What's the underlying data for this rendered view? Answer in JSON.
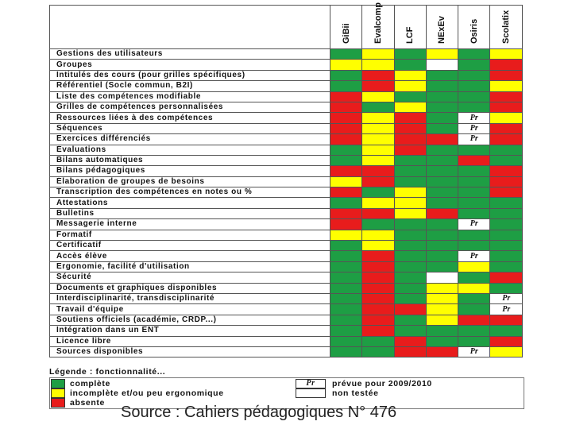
{
  "columns": [
    "GiBii",
    "Evalcomp",
    "LCF",
    "NExEv",
    "Osiris",
    "Scolatix"
  ],
  "rows": [
    {
      "label": "Gestions des utilisateurs",
      "cells": [
        "g",
        "y",
        "g",
        "y",
        "g",
        "y"
      ]
    },
    {
      "label": "Groupes",
      "cells": [
        "y",
        "y",
        "g",
        "w",
        "g",
        "r"
      ]
    },
    {
      "label": "Intitulés des cours (pour grilles spécifiques)",
      "cells": [
        "g",
        "r",
        "y",
        "g",
        "g",
        "r"
      ]
    },
    {
      "label": "Référentiel (Socle commun, B2I)",
      "cells": [
        "g",
        "r",
        "y",
        "g",
        "g",
        "y"
      ]
    },
    {
      "label": "Liste des compétences modifiable",
      "cells": [
        "r",
        "y",
        "g",
        "g",
        "g",
        "r"
      ]
    },
    {
      "label": "Grilles de compétences personnalisées",
      "cells": [
        "r",
        "g",
        "y",
        "g",
        "g",
        "r"
      ]
    },
    {
      "label": "Ressources liées à des compétences",
      "cells": [
        "r",
        "y",
        "r",
        "g",
        "Pr",
        "y"
      ]
    },
    {
      "label": "Séquences",
      "cells": [
        "r",
        "y",
        "r",
        "g",
        "Pr",
        "r"
      ]
    },
    {
      "label": "Exercices différenciés",
      "cells": [
        "r",
        "y",
        "r",
        "r",
        "Pr",
        "r"
      ]
    },
    {
      "label": "Évaluations",
      "cells": [
        "g",
        "y",
        "r",
        "g",
        "g",
        "g"
      ]
    },
    {
      "label": "Bilans automatiques",
      "cells": [
        "g",
        "y",
        "g",
        "g",
        "r",
        "g"
      ]
    },
    {
      "label": "Bilans pédagogiques",
      "cells": [
        "r",
        "r",
        "g",
        "g",
        "g",
        "r"
      ]
    },
    {
      "label": "Élaboration de groupes de besoins",
      "cells": [
        "y",
        "r",
        "g",
        "g",
        "g",
        "r"
      ]
    },
    {
      "label": "Transcription des compétences en notes ou %",
      "cells": [
        "r",
        "g",
        "y",
        "g",
        "g",
        "r"
      ]
    },
    {
      "label": "Attestations",
      "cells": [
        "g",
        "y",
        "y",
        "g",
        "g",
        "g"
      ]
    },
    {
      "label": "Bulletins",
      "cells": [
        "r",
        "r",
        "y",
        "r",
        "g",
        "g"
      ]
    },
    {
      "label": "Messagerie interne",
      "cells": [
        "r",
        "g",
        "g",
        "g",
        "Pr",
        "g"
      ]
    },
    {
      "label": "Formatif",
      "cells": [
        "y",
        "y",
        "g",
        "g",
        "g",
        "g"
      ]
    },
    {
      "label": "Certificatif",
      "cells": [
        "g",
        "y",
        "g",
        "g",
        "g",
        "g"
      ]
    },
    {
      "label": "Accès élève",
      "cells": [
        "g",
        "r",
        "g",
        "g",
        "Pr",
        "g"
      ]
    },
    {
      "label": "Ergonomie, facilité d'utilisation",
      "cells": [
        "g",
        "r",
        "g",
        "g",
        "y",
        "g"
      ]
    },
    {
      "label": "Sécurité",
      "cells": [
        "g",
        "r",
        "g",
        "w",
        "g",
        "r"
      ]
    },
    {
      "label": "Documents et graphiques disponibles",
      "cells": [
        "g",
        "r",
        "g",
        "y",
        "y",
        "g"
      ]
    },
    {
      "label": "Interdisciplinarité, transdisciplinarité",
      "cells": [
        "g",
        "r",
        "g",
        "y",
        "g",
        "Pr"
      ]
    },
    {
      "label": "Travail d'équipe",
      "cells": [
        "g",
        "r",
        "r",
        "y",
        "g",
        "Pr"
      ]
    },
    {
      "label": "Soutiens officiels (académie, CRDP...)",
      "cells": [
        "g",
        "r",
        "g",
        "y",
        "r",
        "r"
      ]
    },
    {
      "label": "Intégration dans un ENT",
      "cells": [
        "g",
        "r",
        "g",
        "g",
        "g",
        "g"
      ]
    },
    {
      "label": "Licence libre",
      "cells": [
        "g",
        "g",
        "r",
        "g",
        "g",
        "r"
      ]
    },
    {
      "label": "Sources disponibles",
      "cells": [
        "g",
        "g",
        "r",
        "r",
        "Pr",
        "y"
      ]
    }
  ],
  "pr_text": "Pr",
  "colors": {
    "g": "#1e9e44",
    "y": "#ffff00",
    "r": "#e81c1c",
    "w": "#ffffff"
  },
  "legend": {
    "title": "Légende : fonctionnalité...",
    "complete": "complète",
    "incomplete": "incomplète et/ou peu ergonomique",
    "absent": "absente",
    "planned": "prévue pour 2009/2010",
    "untested": "non testée"
  },
  "source": "Source : Cahiers pédagogiques N° 476"
}
